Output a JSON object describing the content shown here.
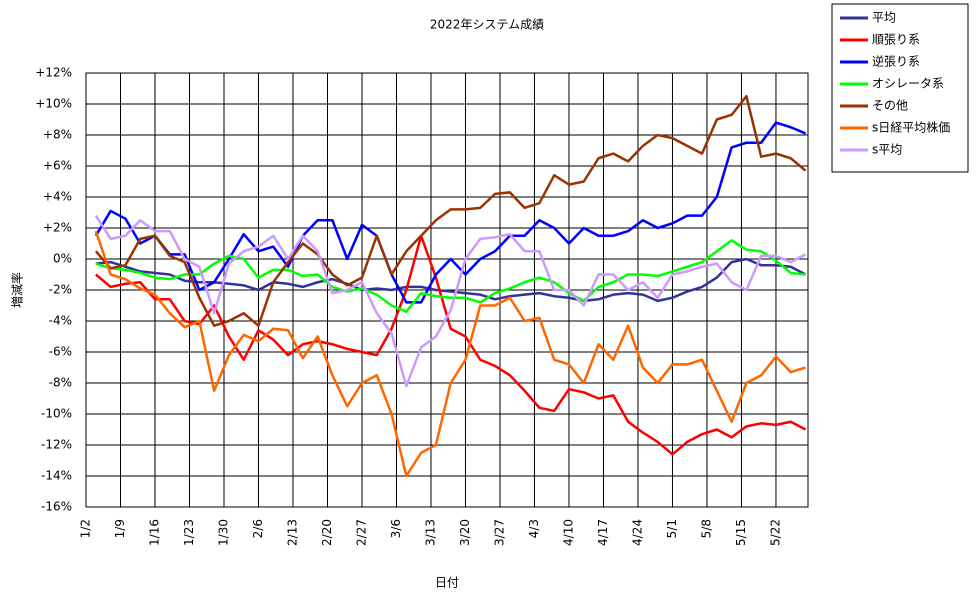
{
  "chart_data": {
    "type": "line",
    "title": "2022年システム成績",
    "x_label": "日付",
    "y_label": "増減率",
    "x": [
      4,
      7,
      10,
      13,
      16,
      19,
      22,
      25,
      28,
      31,
      34,
      37,
      40,
      43,
      46,
      49,
      52,
      55,
      58,
      61,
      64,
      67,
      70,
      73,
      76,
      79,
      82,
      85,
      88,
      91,
      94,
      97,
      100,
      103,
      106,
      109,
      112,
      115,
      118,
      121,
      124,
      127,
      130,
      133,
      136,
      139,
      142,
      145,
      148
    ],
    "xlim": [
      2,
      148.5
    ],
    "xticks": [
      {
        "value": 2,
        "label": "1/2"
      },
      {
        "value": 9,
        "label": "1/9"
      },
      {
        "value": 16,
        "label": "1/16"
      },
      {
        "value": 23,
        "label": "1/23"
      },
      {
        "value": 30,
        "label": "1/30"
      },
      {
        "value": 37,
        "label": "2/6"
      },
      {
        "value": 44,
        "label": "2/13"
      },
      {
        "value": 51,
        "label": "2/20"
      },
      {
        "value": 58,
        "label": "2/27"
      },
      {
        "value": 65,
        "label": "3/6"
      },
      {
        "value": 72,
        "label": "3/13"
      },
      {
        "value": 79,
        "label": "3/20"
      },
      {
        "value": 86,
        "label": "3/27"
      },
      {
        "value": 93,
        "label": "4/3"
      },
      {
        "value": 100,
        "label": "4/10"
      },
      {
        "value": 107,
        "label": "4/17"
      },
      {
        "value": 114,
        "label": "4/24"
      },
      {
        "value": 121,
        "label": "5/1"
      },
      {
        "value": 128,
        "label": "5/8"
      },
      {
        "value": 135,
        "label": "5/15"
      },
      {
        "value": 142,
        "label": "5/22"
      }
    ],
    "ylim": [
      -16,
      12
    ],
    "yticks": [
      {
        "value": -16,
        "label": "-16%"
      },
      {
        "value": -14,
        "label": "-14%"
      },
      {
        "value": -12,
        "label": "-12%"
      },
      {
        "value": -10,
        "label": "-10%"
      },
      {
        "value": -8,
        "label": "-8%"
      },
      {
        "value": -6,
        "label": "-6%"
      },
      {
        "value": -4,
        "label": "-4%"
      },
      {
        "value": -2,
        "label": "-2%"
      },
      {
        "value": 0,
        "label": "0%"
      },
      {
        "value": 2,
        "label": "+2%"
      },
      {
        "value": 4,
        "label": "+4%"
      },
      {
        "value": 6,
        "label": "+6%"
      },
      {
        "value": 8,
        "label": "+8%"
      },
      {
        "value": 10,
        "label": "+10%"
      },
      {
        "value": 12,
        "label": "+12%"
      }
    ],
    "grid": true,
    "legend": "outside-right-top",
    "series": [
      {
        "name": "平均",
        "color": "#333399",
        "values": [
          -0.3,
          -0.2,
          -0.5,
          -0.8,
          -0.9,
          -1.0,
          -1.4,
          -1.5,
          -1.5,
          -1.6,
          -1.7,
          -2.0,
          -1.5,
          -1.6,
          -1.8,
          -1.5,
          -1.3,
          -1.6,
          -2.0,
          -1.9,
          -2.0,
          -1.8,
          -1.8,
          -2.0,
          -2.1,
          -2.2,
          -2.3,
          -2.6,
          -2.4,
          -2.3,
          -2.2,
          -2.4,
          -2.5,
          -2.7,
          -2.6,
          -2.3,
          -2.2,
          -2.3,
          -2.7,
          -2.5,
          -2.1,
          -1.8,
          -1.2,
          -0.2,
          0.0,
          -0.4,
          -0.4,
          -0.5,
          -1.0
        ]
      },
      {
        "name": "順張り系",
        "color": "#ff0000",
        "values": [
          -1.0,
          -1.8,
          -1.6,
          -1.5,
          -2.6,
          -2.6,
          -4.0,
          -4.2,
          -3.0,
          -5.0,
          -6.5,
          -4.6,
          -5.2,
          -6.2,
          -5.5,
          -5.3,
          -5.5,
          -5.8,
          -6.0,
          -6.2,
          -4.5,
          -2.0,
          1.5,
          -1.2,
          -4.5,
          -5.0,
          -6.5,
          -6.9,
          -7.5,
          -8.5,
          -9.6,
          -9.8,
          -8.4,
          -8.6,
          -9.0,
          -8.8,
          -10.5,
          -11.2,
          -11.8,
          -12.6,
          -11.8,
          -11.3,
          -11.0,
          -11.5,
          -10.8,
          -10.6,
          -10.7,
          -10.5,
          -11.0
        ]
      },
      {
        "name": "逆張り系",
        "color": "#0000ff",
        "values": [
          1.5,
          3.1,
          2.6,
          1.0,
          1.5,
          0.3,
          0.3,
          -2.0,
          -1.5,
          0.0,
          1.6,
          0.5,
          0.8,
          -0.5,
          1.5,
          2.5,
          2.5,
          0.0,
          2.2,
          1.5,
          -1.0,
          -2.8,
          -2.8,
          -1.0,
          0.0,
          -1.0,
          0.0,
          0.5,
          1.5,
          1.5,
          2.5,
          2.0,
          1.0,
          2.0,
          1.5,
          1.5,
          1.8,
          2.5,
          2.0,
          2.3,
          2.8,
          2.8,
          4.0,
          7.2,
          7.5,
          7.5,
          8.8,
          8.5,
          8.1
        ]
      },
      {
        "name": "オシレータ系",
        "color": "#00ff00",
        "values": [
          -0.3,
          -0.6,
          -0.7,
          -0.9,
          -1.2,
          -1.3,
          -1.0,
          -1.0,
          -0.3,
          0.2,
          0.0,
          -1.2,
          -0.7,
          -0.7,
          -1.1,
          -1.0,
          -1.8,
          -2.1,
          -1.9,
          -2.3,
          -3.0,
          -3.4,
          -2.2,
          -2.4,
          -2.5,
          -2.5,
          -2.8,
          -2.2,
          -1.9,
          -1.5,
          -1.2,
          -1.5,
          -2.2,
          -2.7,
          -1.8,
          -1.5,
          -1.0,
          -1.0,
          -1.1,
          -0.8,
          -0.5,
          -0.2,
          0.5,
          1.2,
          0.6,
          0.5,
          -0.1,
          -0.9,
          -1.0
        ]
      },
      {
        "name": "その他",
        "color": "#993300",
        "values": [
          0.5,
          -0.6,
          -0.4,
          1.3,
          1.5,
          0.2,
          -0.2,
          -2.5,
          -4.3,
          -4.0,
          -3.5,
          -4.3,
          -1.5,
          -0.2,
          1.0,
          0.3,
          -1.0,
          -1.7,
          -1.2,
          1.5,
          -1.0,
          0.5,
          1.5,
          2.5,
          3.2,
          3.2,
          3.3,
          4.2,
          4.3,
          3.3,
          3.6,
          5.4,
          4.8,
          5.0,
          6.5,
          6.8,
          6.3,
          7.3,
          8.0,
          7.8,
          7.3,
          6.8,
          9.0,
          9.3,
          10.5,
          6.6,
          6.8,
          6.5,
          5.7
        ]
      },
      {
        "name": "s日経平均株価",
        "color": "#ff6600",
        "values": [
          1.8,
          -1.0,
          -1.3,
          -1.9,
          -2.3,
          -3.5,
          -4.4,
          -4.0,
          -8.5,
          -6.2,
          -4.9,
          -5.3,
          -4.5,
          -4.6,
          -6.4,
          -5.0,
          -7.5,
          -9.5,
          -8.0,
          -7.5,
          -10.0,
          -14.0,
          -12.5,
          -12.0,
          -8.0,
          -6.5,
          -3.0,
          -3.0,
          -2.5,
          -4.0,
          -3.8,
          -6.5,
          -6.8,
          -8.0,
          -5.5,
          -6.5,
          -4.3,
          -7.0,
          -8.0,
          -6.8,
          -6.8,
          -6.5,
          -8.5,
          -10.5,
          -8.0,
          -7.5,
          -6.3,
          -7.3,
          -7.0
        ]
      },
      {
        "name": "s平均",
        "color": "#cc99ff",
        "values": [
          2.8,
          1.3,
          1.5,
          2.5,
          1.8,
          1.8,
          0.0,
          -0.5,
          -3.5,
          -0.3,
          0.5,
          0.8,
          1.5,
          0.0,
          1.5,
          0.5,
          -2.2,
          -2.0,
          -1.5,
          -3.5,
          -4.8,
          -8.2,
          -5.7,
          -5.0,
          -3.3,
          0.0,
          1.3,
          1.4,
          1.6,
          0.5,
          0.5,
          -2.0,
          -2.0,
          -3.0,
          -1.0,
          -1.0,
          -2.0,
          -1.5,
          -2.5,
          -1.0,
          -0.8,
          -0.5,
          -0.3,
          -1.5,
          -2.0,
          0.2,
          0.2,
          -0.2,
          0.3
        ]
      }
    ]
  }
}
